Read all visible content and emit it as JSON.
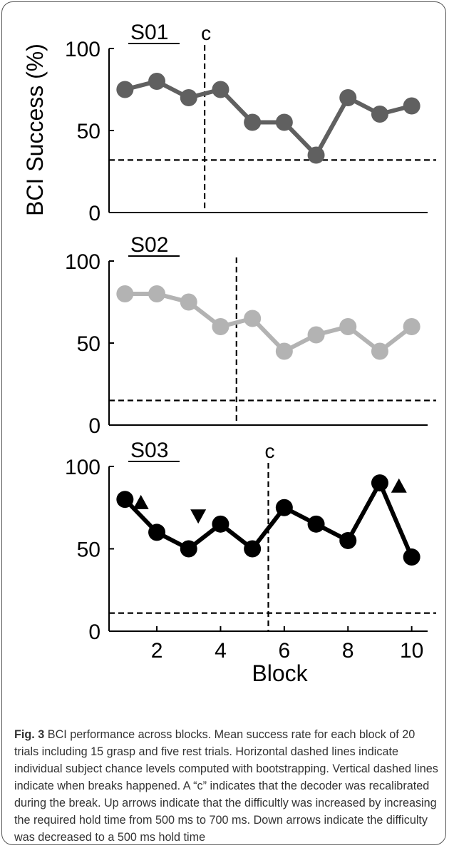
{
  "chart_data": [
    {
      "type": "line",
      "title": "S01",
      "ylabel": "BCI Success (%)",
      "xlim": [
        0.5,
        10.5
      ],
      "ylim": [
        0,
        100
      ],
      "yticks": [
        "0",
        "50",
        "100"
      ],
      "x": [
        1,
        2,
        3,
        4,
        5,
        6,
        7,
        8,
        9,
        10
      ],
      "series": [
        {
          "values": [
            75,
            80,
            70,
            75,
            55,
            55,
            35,
            70,
            60,
            65
          ],
          "color": "#606060"
        }
      ],
      "chance_level": 32,
      "break_at": 3.5,
      "break_label": "c",
      "annotations": []
    },
    {
      "type": "line",
      "title": "S02",
      "xlim": [
        0.5,
        10.5
      ],
      "ylim": [
        0,
        100
      ],
      "yticks": [
        "0",
        "50",
        "100"
      ],
      "x": [
        1,
        2,
        3,
        4,
        5,
        6,
        7,
        8,
        9,
        10
      ],
      "series": [
        {
          "values": [
            80,
            80,
            75,
            60,
            65,
            45,
            55,
            60,
            45,
            60
          ],
          "color": "#b3b3b3"
        }
      ],
      "chance_level": 15,
      "break_at": 4.5,
      "break_label": "",
      "annotations": []
    },
    {
      "type": "line",
      "title": "S03",
      "xlabel": "Block",
      "xlim": [
        0.5,
        10.5
      ],
      "ylim": [
        0,
        100
      ],
      "yticks": [
        "0",
        "50",
        "100"
      ],
      "xticks": [
        "2",
        "4",
        "6",
        "8",
        "10"
      ],
      "x": [
        1,
        2,
        3,
        4,
        5,
        6,
        7,
        8,
        9,
        10
      ],
      "series": [
        {
          "values": [
            80,
            60,
            50,
            65,
            50,
            75,
            65,
            55,
            90,
            45
          ],
          "color": "#000000"
        }
      ],
      "chance_level": 11,
      "break_at": 5.5,
      "break_label": "c",
      "annotations": [
        {
          "type": "up-arrow",
          "x": 1.5,
          "y": 78
        },
        {
          "type": "down-arrow",
          "x": 3.3,
          "y": 70
        },
        {
          "type": "up-arrow",
          "x": 9.6,
          "y": 88
        }
      ]
    }
  ],
  "caption": {
    "label": "Fig. 3",
    "text": " BCI performance across blocks. Mean success rate for each block of 20 trials including 15 grasp and five rest trials. Horizontal dashed lines indicate individual subject chance levels computed with bootstrapping. Vertical dashed lines indicate when breaks happened. A “c” indicates that the decoder was recalibrated during the break. Up arrows indicate that the difficultly was increased by increasing the required hold time from 500 ms to 700 ms. Down arrows indicate the difficulty was decreased to a 500 ms hold time"
  }
}
